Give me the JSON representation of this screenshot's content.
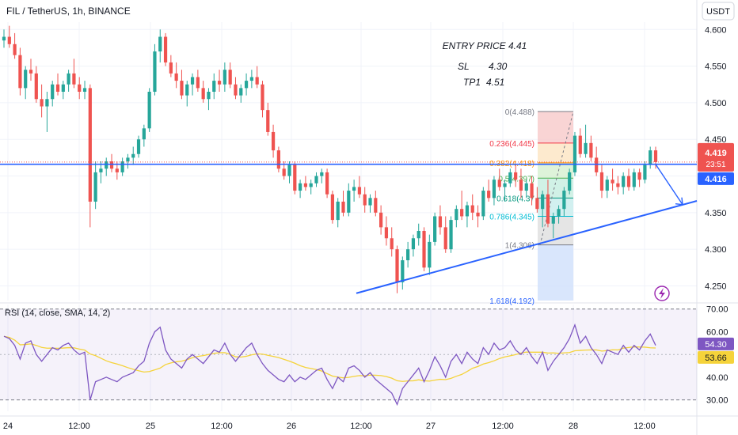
{
  "header": {
    "symbol": "FIL / TetherUS, 1h, BINANCE",
    "currency": "USDT"
  },
  "colors": {
    "up": "#26a69a",
    "down": "#ef5350",
    "trend": "#2962ff",
    "rsi": "#7e57c2",
    "rsi_ma": "#f5d33a"
  },
  "price_axis": {
    "ticks": [
      "4.600",
      "4.550",
      "4.500",
      "4.450",
      "4.400",
      "4.350",
      "4.300",
      "4.250"
    ]
  },
  "price_badges": {
    "last": "4.419",
    "countdown": "23:51",
    "line": "4.416"
  },
  "annotation": {
    "entry": "ENTRY PRICE 4.41",
    "sl_label": "SL",
    "sl_value": "4.30",
    "tp_label": "TP1",
    "tp_value": "4.51"
  },
  "fib_labels": [
    "0(4.488)",
    "0.236(4.445)",
    "0.382(4.418)",
    "0.5(4.397)",
    "0.618(4.37",
    "0.786(4.345)",
    "1(4.306)",
    "1.618(4.192)"
  ],
  "rsi_panel": {
    "label": "RSI (14, close, SMA, 14, 2)",
    "ticks": [
      "70.00",
      "60.00",
      "50.00",
      "40.00",
      "30.00"
    ],
    "badge_rsi": "54.30",
    "badge_ma": "53.66"
  },
  "time_axis": {
    "labels": [
      "24",
      "12:00",
      "25",
      "12:00",
      "26",
      "12:00",
      "27",
      "12:00",
      "28",
      "12:00"
    ]
  },
  "chart_data": {
    "type": "candlestick",
    "symbol": "FIL / TetherUS",
    "interval": "1h",
    "exchange": "BINANCE",
    "ylim": [
      4.23,
      4.61
    ],
    "x_ticks": [
      "24",
      "12:00",
      "25",
      "12:00",
      "26",
      "12:00",
      "27",
      "12:00",
      "28",
      "12:00"
    ],
    "candles": [
      [
        4.585,
        4.6,
        4.575,
        4.59
      ],
      [
        4.59,
        4.605,
        4.575,
        4.58
      ],
      [
        4.58,
        4.595,
        4.56,
        4.565
      ],
      [
        4.565,
        4.575,
        4.51,
        4.52
      ],
      [
        4.52,
        4.55,
        4.505,
        4.545
      ],
      [
        4.545,
        4.56,
        4.53,
        4.54
      ],
      [
        4.54,
        4.55,
        4.5,
        4.505
      ],
      [
        4.505,
        4.525,
        4.48,
        4.495
      ],
      [
        4.495,
        4.515,
        4.46,
        4.505
      ],
      [
        4.505,
        4.53,
        4.495,
        4.525
      ],
      [
        4.525,
        4.54,
        4.51,
        4.515
      ],
      [
        4.515,
        4.53,
        4.505,
        4.525
      ],
      [
        4.525,
        4.545,
        4.515,
        4.54
      ],
      [
        4.54,
        4.56,
        4.52,
        4.525
      ],
      [
        4.525,
        4.535,
        4.505,
        4.515
      ],
      [
        4.515,
        4.53,
        4.505,
        4.52
      ],
      [
        4.52,
        4.525,
        4.33,
        4.365
      ],
      [
        4.365,
        4.42,
        4.355,
        4.405
      ],
      [
        4.405,
        4.42,
        4.39,
        4.41
      ],
      [
        4.41,
        4.425,
        4.4,
        4.42
      ],
      [
        4.42,
        4.43,
        4.405,
        4.41
      ],
      [
        4.41,
        4.42,
        4.395,
        4.405
      ],
      [
        4.405,
        4.425,
        4.4,
        4.42
      ],
      [
        4.42,
        4.43,
        4.41,
        4.425
      ],
      [
        4.425,
        4.44,
        4.415,
        4.43
      ],
      [
        4.43,
        4.455,
        4.425,
        4.45
      ],
      [
        4.45,
        4.47,
        4.44,
        4.465
      ],
      [
        4.465,
        4.52,
        4.46,
        4.515
      ],
      [
        4.515,
        4.58,
        4.51,
        4.57
      ],
      [
        4.57,
        4.6,
        4.555,
        4.59
      ],
      [
        4.59,
        4.595,
        4.55,
        4.555
      ],
      [
        4.555,
        4.565,
        4.535,
        4.54
      ],
      [
        4.54,
        4.555,
        4.52,
        4.53
      ],
      [
        4.53,
        4.545,
        4.505,
        4.51
      ],
      [
        4.51,
        4.53,
        4.495,
        4.525
      ],
      [
        4.525,
        4.54,
        4.51,
        4.535
      ],
      [
        4.535,
        4.545,
        4.515,
        4.52
      ],
      [
        4.52,
        4.53,
        4.5,
        4.505
      ],
      [
        4.505,
        4.52,
        4.49,
        4.515
      ],
      [
        4.515,
        4.54,
        4.505,
        4.53
      ],
      [
        4.53,
        4.545,
        4.515,
        4.525
      ],
      [
        4.525,
        4.555,
        4.515,
        4.545
      ],
      [
        4.545,
        4.555,
        4.52,
        4.525
      ],
      [
        4.525,
        4.535,
        4.505,
        4.51
      ],
      [
        4.51,
        4.525,
        4.5,
        4.52
      ],
      [
        4.52,
        4.54,
        4.51,
        4.53
      ],
      [
        4.53,
        4.545,
        4.52,
        4.535
      ],
      [
        4.535,
        4.55,
        4.52,
        4.525
      ],
      [
        4.525,
        4.53,
        4.48,
        4.49
      ],
      [
        4.49,
        4.5,
        4.455,
        4.46
      ],
      [
        4.46,
        4.47,
        4.425,
        4.435
      ],
      [
        4.435,
        4.44,
        4.405,
        4.41
      ],
      [
        4.41,
        4.42,
        4.395,
        4.4
      ],
      [
        4.4,
        4.42,
        4.39,
        4.415
      ],
      [
        4.415,
        4.42,
        4.375,
        4.38
      ],
      [
        4.38,
        4.395,
        4.37,
        4.39
      ],
      [
        4.39,
        4.4,
        4.38,
        4.385
      ],
      [
        4.385,
        4.395,
        4.375,
        4.39
      ],
      [
        4.39,
        4.405,
        4.385,
        4.4
      ],
      [
        4.4,
        4.41,
        4.39,
        4.405
      ],
      [
        4.405,
        4.41,
        4.37,
        4.375
      ],
      [
        4.375,
        4.38,
        4.335,
        4.34
      ],
      [
        4.34,
        4.37,
        4.33,
        4.365
      ],
      [
        4.365,
        4.38,
        4.345,
        4.35
      ],
      [
        4.35,
        4.39,
        4.345,
        4.38
      ],
      [
        4.38,
        4.395,
        4.365,
        4.385
      ],
      [
        4.385,
        4.4,
        4.37,
        4.375
      ],
      [
        4.375,
        4.385,
        4.35,
        4.36
      ],
      [
        4.36,
        4.375,
        4.35,
        4.37
      ],
      [
        4.37,
        4.38,
        4.345,
        4.35
      ],
      [
        4.35,
        4.36,
        4.32,
        4.33
      ],
      [
        4.33,
        4.345,
        4.305,
        4.315
      ],
      [
        4.315,
        4.33,
        4.29,
        4.3
      ],
      [
        4.3,
        4.305,
        4.24,
        4.255
      ],
      [
        4.255,
        4.29,
        4.245,
        4.285
      ],
      [
        4.285,
        4.31,
        4.275,
        4.3
      ],
      [
        4.3,
        4.32,
        4.29,
        4.315
      ],
      [
        4.315,
        4.335,
        4.305,
        4.325
      ],
      [
        4.325,
        4.33,
        4.27,
        4.275
      ],
      [
        4.275,
        4.32,
        4.265,
        4.31
      ],
      [
        4.31,
        4.35,
        4.305,
        4.345
      ],
      [
        4.345,
        4.36,
        4.32,
        4.33
      ],
      [
        4.33,
        4.345,
        4.295,
        4.3
      ],
      [
        4.3,
        4.345,
        4.295,
        4.34
      ],
      [
        4.34,
        4.36,
        4.33,
        4.355
      ],
      [
        4.355,
        4.38,
        4.34,
        4.345
      ],
      [
        4.345,
        4.365,
        4.33,
        4.36
      ],
      [
        4.36,
        4.375,
        4.34,
        4.35
      ],
      [
        4.35,
        4.36,
        4.33,
        4.345
      ],
      [
        4.345,
        4.385,
        4.34,
        4.38
      ],
      [
        4.38,
        4.395,
        4.365,
        4.37
      ],
      [
        4.37,
        4.4,
        4.36,
        4.395
      ],
      [
        4.395,
        4.41,
        4.38,
        4.385
      ],
      [
        4.385,
        4.395,
        4.365,
        4.39
      ],
      [
        4.39,
        4.41,
        4.385,
        4.405
      ],
      [
        4.405,
        4.415,
        4.385,
        4.395
      ],
      [
        4.395,
        4.41,
        4.37,
        4.38
      ],
      [
        4.38,
        4.395,
        4.37,
        4.39
      ],
      [
        4.39,
        4.4,
        4.36,
        4.37
      ],
      [
        4.37,
        4.385,
        4.35,
        4.355
      ],
      [
        4.355,
        4.38,
        4.33,
        4.375
      ],
      [
        4.375,
        4.395,
        4.33,
        4.335
      ],
      [
        4.335,
        4.35,
        4.315,
        4.345
      ],
      [
        4.345,
        4.36,
        4.335,
        4.355
      ],
      [
        4.355,
        4.385,
        4.345,
        4.38
      ],
      [
        4.38,
        4.41,
        4.375,
        4.405
      ],
      [
        4.405,
        4.46,
        4.4,
        4.455
      ],
      [
        4.455,
        4.465,
        4.425,
        4.43
      ],
      [
        4.43,
        4.47,
        4.425,
        4.445
      ],
      [
        4.445,
        4.455,
        4.42,
        4.425
      ],
      [
        4.425,
        4.44,
        4.4,
        4.405
      ],
      [
        4.405,
        4.415,
        4.37,
        4.38
      ],
      [
        4.38,
        4.4,
        4.37,
        4.395
      ],
      [
        4.395,
        4.41,
        4.38,
        4.39
      ],
      [
        4.39,
        4.4,
        4.375,
        4.385
      ],
      [
        4.385,
        4.405,
        4.375,
        4.4
      ],
      [
        4.4,
        4.41,
        4.38,
        4.385
      ],
      [
        4.385,
        4.41,
        4.38,
        4.405
      ],
      [
        4.405,
        4.41,
        4.385,
        4.395
      ],
      [
        4.395,
        4.42,
        4.39,
        4.415
      ],
      [
        4.415,
        4.44,
        4.41,
        4.435
      ],
      [
        4.435,
        4.44,
        4.41,
        4.419
      ]
    ],
    "fibonacci": {
      "levels": [
        0,
        0.236,
        0.382,
        0.5,
        0.618,
        0.786,
        1,
        1.618
      ],
      "prices": [
        4.488,
        4.445,
        4.418,
        4.397,
        4.37,
        4.345,
        4.306,
        4.192
      ]
    },
    "horizontal_line": 4.416,
    "trendline": {
      "from": [
        4.24
      ],
      "to": [
        4.365
      ]
    },
    "rsi": {
      "ylim": [
        25,
        72
      ],
      "ticks": [
        70,
        60,
        50,
        40,
        30
      ],
      "last": 54.3,
      "ma_last": 53.66,
      "values": [
        58,
        57,
        54,
        48,
        55,
        56,
        50,
        47,
        50,
        53,
        52,
        54,
        55,
        52,
        50,
        51,
        30,
        38,
        39,
        40,
        39,
        38,
        40,
        41,
        42,
        45,
        47,
        55,
        60,
        62,
        52,
        48,
        46,
        44,
        48,
        50,
        48,
        46,
        49,
        52,
        51,
        55,
        50,
        47,
        50,
        53,
        55,
        50,
        46,
        43,
        41,
        39,
        38,
        41,
        38,
        40,
        39,
        41,
        43,
        44,
        39,
        35,
        40,
        38,
        44,
        45,
        43,
        40,
        42,
        39,
        37,
        35,
        33,
        28,
        35,
        38,
        41,
        44,
        38,
        43,
        49,
        45,
        40,
        47,
        50,
        46,
        51,
        48,
        46,
        53,
        50,
        55,
        52,
        53,
        56,
        52,
        50,
        53,
        49,
        46,
        51,
        43,
        47,
        50,
        53,
        57,
        63,
        55,
        58,
        53,
        50,
        46,
        52,
        51,
        50,
        54,
        51,
        54,
        52,
        56,
        59,
        54
      ]
    }
  }
}
